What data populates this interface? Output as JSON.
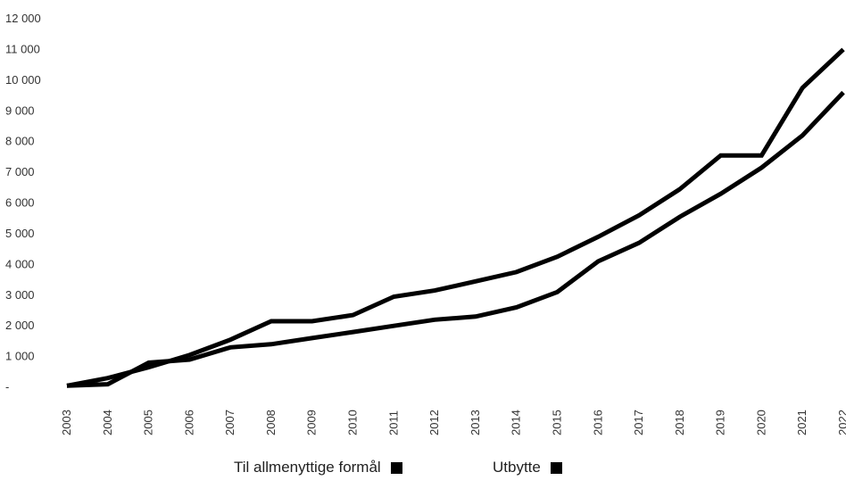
{
  "chart_data": {
    "type": "line",
    "categories": [
      "2003",
      "2004",
      "2005",
      "2006",
      "2007",
      "2008",
      "2009",
      "2010",
      "2011",
      "2012",
      "2013",
      "2014",
      "2015",
      "2016",
      "2017",
      "2018",
      "2019",
      "2020",
      "2021",
      "2022"
    ],
    "series": [
      {
        "name": "Til allmenyttige formål",
        "color": "#000000",
        "values": [
          50,
          300,
          650,
          1050,
          1550,
          2150,
          2150,
          2350,
          2950,
          3150,
          3450,
          3750,
          4250,
          4900,
          5600,
          6450,
          7550,
          7550,
          9750,
          11000
        ]
      },
      {
        "name": "Utbytte",
        "color": "#000000",
        "values": [
          50,
          100,
          800,
          900,
          1300,
          1400,
          1600,
          1800,
          2000,
          2200,
          2300,
          2600,
          3100,
          4100,
          4700,
          5550,
          6300,
          7150,
          8200,
          9600
        ]
      }
    ],
    "y_ticks": [
      {
        "value": 0,
        "label": "-"
      },
      {
        "value": 1000,
        "label": "1 000"
      },
      {
        "value": 2000,
        "label": "2 000"
      },
      {
        "value": 3000,
        "label": "3 000"
      },
      {
        "value": 4000,
        "label": "4 000"
      },
      {
        "value": 5000,
        "label": "5 000"
      },
      {
        "value": 6000,
        "label": "6 000"
      },
      {
        "value": 7000,
        "label": "7 000"
      },
      {
        "value": 8000,
        "label": "8 000"
      },
      {
        "value": 9000,
        "label": "9 000"
      },
      {
        "value": 10000,
        "label": "10 000"
      },
      {
        "value": 11000,
        "label": "11 000"
      },
      {
        "value": 12000,
        "label": "12 000"
      }
    ],
    "ylim": [
      0,
      12000
    ],
    "grid": false,
    "legend_position": "bottom",
    "title": "",
    "xlabel": "",
    "ylabel": ""
  },
  "legend": {
    "items": [
      {
        "label": "Til allmenyttige formål"
      },
      {
        "label": "Utbytte"
      }
    ]
  }
}
